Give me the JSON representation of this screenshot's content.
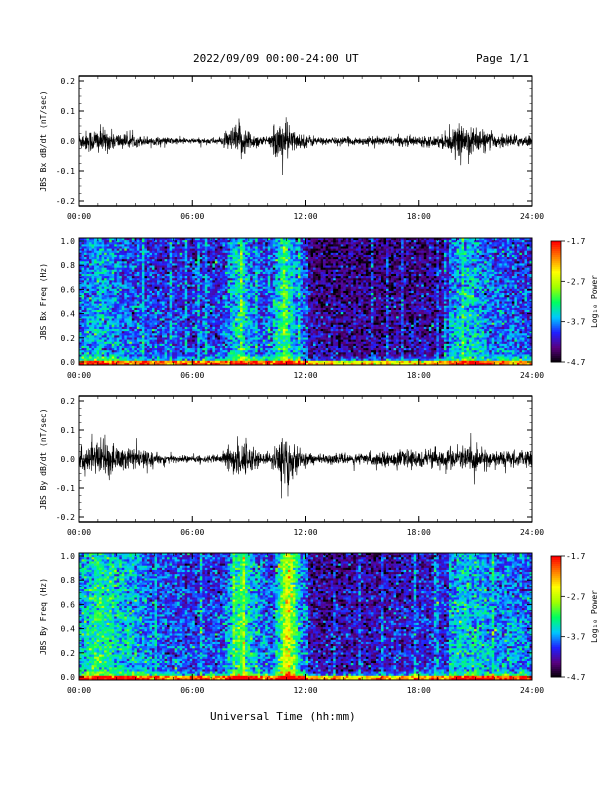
{
  "header": {
    "title": "2022/09/09  00:00-24:00 UT",
    "page": "Page 1/1"
  },
  "x_axis_title": "Universal Time (hh:mm)",
  "x_ticks": [
    "00:00",
    "06:00",
    "12:00",
    "18:00",
    "24:00"
  ],
  "colors": {
    "trace": "#000000",
    "colorbar": [
      "#000000",
      "#5a0080",
      "#2020ff",
      "#00c8ff",
      "#00ff60",
      "#a0ff00",
      "#ffff00",
      "#ff8000",
      "#ff0000"
    ]
  },
  "chart_data": [
    {
      "type": "line",
      "ylabel": "JBS Bx dB/dt (nT/sec)",
      "xlim": [
        0,
        24
      ],
      "ylim": [
        -0.2,
        0.2
      ],
      "yticks": [
        "0.2",
        "0.1",
        "0.0",
        "-0.1",
        "-0.2"
      ],
      "envelope": [
        {
          "x": 0,
          "amp": 0.03
        },
        {
          "x": 1,
          "amp": 0.05
        },
        {
          "x": 2,
          "amp": 0.03
        },
        {
          "x": 3,
          "amp": 0.02
        },
        {
          "x": 4,
          "amp": 0.015
        },
        {
          "x": 6,
          "amp": 0.01
        },
        {
          "x": 7.5,
          "amp": 0.012
        },
        {
          "x": 8.5,
          "amp": 0.07
        },
        {
          "x": 9.2,
          "amp": 0.03
        },
        {
          "x": 10,
          "amp": 0.012
        },
        {
          "x": 10.8,
          "amp": 0.09
        },
        {
          "x": 11.5,
          "amp": 0.03
        },
        {
          "x": 13,
          "amp": 0.012
        },
        {
          "x": 16,
          "amp": 0.015
        },
        {
          "x": 19,
          "amp": 0.02
        },
        {
          "x": 20.5,
          "amp": 0.06
        },
        {
          "x": 22,
          "amp": 0.025
        },
        {
          "x": 24,
          "amp": 0.02
        }
      ]
    },
    {
      "type": "heatmap",
      "ylabel": "JBS Bx Freq (Hz)",
      "xlim": [
        0,
        24
      ],
      "ylim": [
        0,
        1
      ],
      "yticks": [
        "1.0",
        "0.8",
        "0.6",
        "0.4",
        "0.2",
        "0.0"
      ],
      "colorbar": {
        "label": "Log₁₀ Power",
        "ticks": [
          "-1.7",
          "-2.7",
          "-3.7",
          "-4.7"
        ],
        "range": [
          -4.7,
          -1.7
        ]
      }
    },
    {
      "type": "line",
      "ylabel": "JBS By dB/dt (nT/sec)",
      "xlim": [
        0,
        24
      ],
      "ylim": [
        -0.2,
        0.2
      ],
      "yticks": [
        "0.2",
        "0.1",
        "0.0",
        "-0.1",
        "-0.2"
      ],
      "envelope": [
        {
          "x": 0,
          "amp": 0.04
        },
        {
          "x": 1,
          "amp": 0.07
        },
        {
          "x": 2,
          "amp": 0.05
        },
        {
          "x": 3,
          "amp": 0.04
        },
        {
          "x": 4,
          "amp": 0.02
        },
        {
          "x": 6,
          "amp": 0.012
        },
        {
          "x": 7.5,
          "amp": 0.015
        },
        {
          "x": 8.5,
          "amp": 0.08
        },
        {
          "x": 9.5,
          "amp": 0.03
        },
        {
          "x": 10.2,
          "amp": 0.015
        },
        {
          "x": 11,
          "amp": 0.13
        },
        {
          "x": 11.7,
          "amp": 0.03
        },
        {
          "x": 13,
          "amp": 0.015
        },
        {
          "x": 16,
          "amp": 0.025
        },
        {
          "x": 19,
          "amp": 0.035
        },
        {
          "x": 20.5,
          "amp": 0.05
        },
        {
          "x": 22,
          "amp": 0.03
        },
        {
          "x": 24,
          "amp": 0.03
        }
      ]
    },
    {
      "type": "heatmap",
      "ylabel": "JBS By Freq (Hz)",
      "xlim": [
        0,
        24
      ],
      "ylim": [
        0,
        1
      ],
      "yticks": [
        "1.0",
        "0.8",
        "0.6",
        "0.4",
        "0.2",
        "0.0"
      ],
      "colorbar": {
        "label": "Log₁₀ Power",
        "ticks": [
          "-1.7",
          "-2.7",
          "-3.7",
          "-4.7"
        ],
        "range": [
          -4.7,
          -1.7
        ]
      }
    }
  ]
}
